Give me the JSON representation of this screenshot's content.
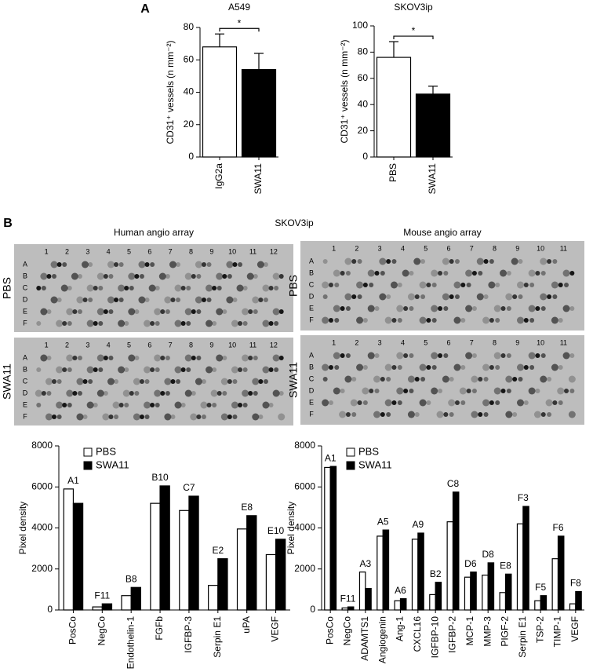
{
  "panel_labels": [
    "A",
    "B"
  ],
  "blots": {
    "title": "SKOV3ip",
    "conditions": [
      "PBS",
      "SWA11"
    ],
    "arrays": [
      {
        "title": "Human angio array",
        "columns": [
          1,
          2,
          3,
          4,
          5,
          6,
          7,
          8,
          9,
          10,
          11,
          12
        ],
        "rows": [
          "A",
          "B",
          "C",
          "D",
          "E",
          "F"
        ]
      },
      {
        "title": "Mouse angio array",
        "columns": [
          1,
          2,
          3,
          4,
          5,
          6,
          7,
          8,
          9,
          10,
          11
        ],
        "rows": [
          "A",
          "B",
          "C",
          "D",
          "E",
          "F"
        ]
      }
    ]
  },
  "chart_data": [
    {
      "type": "bar",
      "title": "A549",
      "y_label": "CD31⁺ vessels (n mm⁻²)",
      "categories": [
        "IgG2a",
        "SWA11"
      ],
      "values": [
        68,
        54
      ],
      "errors": [
        8,
        10
      ],
      "colors": [
        "#ffffff",
        "#000000"
      ],
      "significance": "*",
      "ylim": [
        0,
        80
      ],
      "yticks": [
        0,
        20,
        40,
        60,
        80
      ]
    },
    {
      "type": "bar",
      "title": "SKOV3ip",
      "y_label": "CD31⁺ vessels (n mm⁻²)",
      "categories": [
        "PBS",
        "SWA11"
      ],
      "values": [
        76,
        48
      ],
      "errors": [
        12,
        6
      ],
      "colors": [
        "#ffffff",
        "#000000"
      ],
      "significance": "*",
      "ylim": [
        0,
        100
      ],
      "yticks": [
        0,
        20,
        40,
        60,
        80,
        100
      ]
    },
    {
      "type": "grouped_bar",
      "y_label": "Pixel density",
      "categories": [
        "PosCo",
        "NegCo",
        "Endothelin-1",
        "FGFb",
        "IGFBP-3",
        "Serpin E1",
        "uPA",
        "VEGF"
      ],
      "annotations": [
        "A1",
        "F11",
        "B8",
        "B10",
        "C7",
        "E2",
        "E8",
        "E10"
      ],
      "series": [
        {
          "name": "PBS",
          "color": "#ffffff",
          "values": [
            5900,
            150,
            700,
            5200,
            4850,
            1200,
            3950,
            2700
          ]
        },
        {
          "name": "SWA11",
          "color": "#000000",
          "values": [
            5200,
            300,
            1100,
            6050,
            5550,
            2500,
            4600,
            3450
          ]
        }
      ],
      "ylim": [
        0,
        8000
      ],
      "yticks": [
        0,
        2000,
        4000,
        6000,
        8000
      ]
    },
    {
      "type": "grouped_bar",
      "y_label": "Pixel density",
      "categories": [
        "PosCo",
        "NegCo",
        "ADAMTS1",
        "Angiogenin",
        "Ang-1",
        "CXCL16",
        "IGFBP-10",
        "IGFBP-2",
        "MCP-1",
        "MMP-3",
        "PIGF-2",
        "Serpin E1",
        "TSP-2",
        "TIMP-1",
        "VEGF"
      ],
      "annotations": [
        "A1",
        "F11",
        "A3",
        "A5",
        "A6",
        "A9",
        "B2",
        "C8",
        "D6",
        "D8",
        "E8",
        "F3",
        "F5",
        "F6",
        "F8"
      ],
      "series": [
        {
          "name": "PBS",
          "color": "#ffffff",
          "values": [
            6950,
            100,
            1850,
            3600,
            450,
            3450,
            750,
            4300,
            1600,
            1700,
            850,
            4200,
            450,
            2500,
            300
          ]
        },
        {
          "name": "SWA11",
          "color": "#000000",
          "values": [
            7000,
            150,
            1050,
            3900,
            550,
            3750,
            1350,
            5750,
            1850,
            2300,
            1750,
            5050,
            700,
            3600,
            900
          ]
        }
      ],
      "ylim": [
        0,
        8000
      ],
      "yticks": [
        0,
        2000,
        4000,
        6000,
        8000
      ]
    }
  ]
}
